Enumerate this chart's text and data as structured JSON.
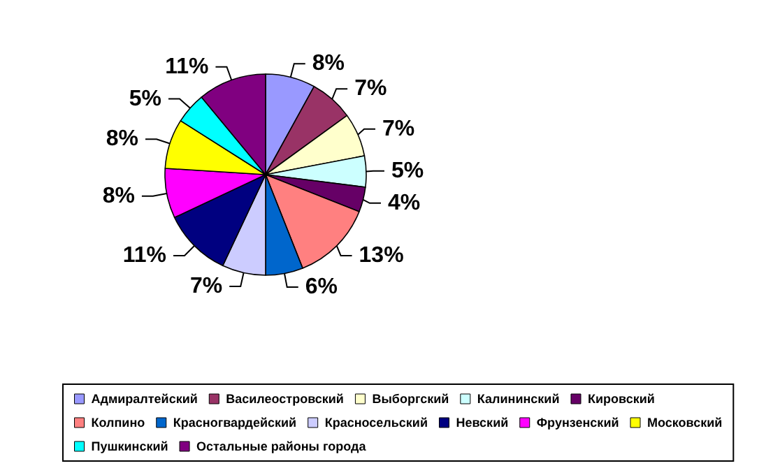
{
  "chart_data": {
    "type": "pie",
    "categories": [
      "Адмиралтейский",
      "Василеостровский",
      "Выборгский",
      "Калининский",
      "Кировский",
      "Колпино",
      "Красногвардейский",
      "Красносельский",
      "Невский",
      "Фрунзенский",
      "Московский",
      "Пушкинский",
      "Остальные районы города"
    ],
    "values": [
      8,
      7,
      7,
      5,
      4,
      13,
      6,
      7,
      11,
      8,
      8,
      5,
      11
    ],
    "colors": [
      "#9999ff",
      "#993366",
      "#ffffcc",
      "#ccffff",
      "#660066",
      "#ff8080",
      "#0066cc",
      "#ccccff",
      "#000080",
      "#ff00ff",
      "#ffff00",
      "#00ffff",
      "#800080"
    ],
    "value_labels": [
      "8%",
      "7%",
      "7%",
      "5%",
      "4%",
      "13%",
      "6%",
      "7%",
      "11%",
      "8%",
      "8%",
      "5%",
      "11%"
    ],
    "legend": "bottom"
  }
}
